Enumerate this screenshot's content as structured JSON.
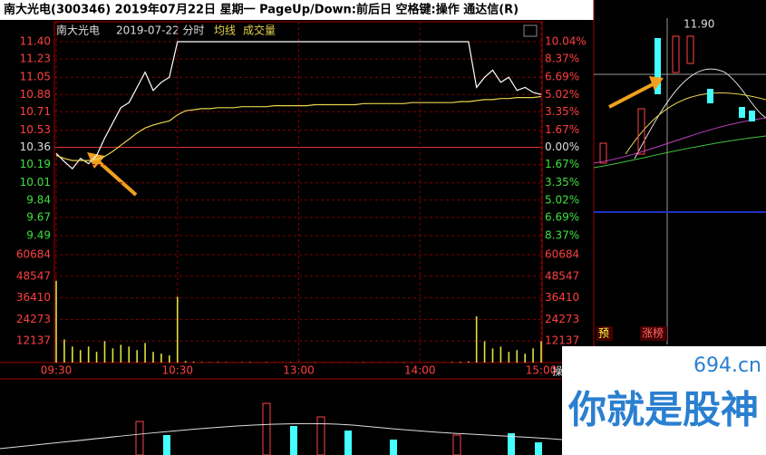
{
  "header": {
    "title": "南大光电(300346)  2019年07月22日 星期一  PageUp/Down:前后日 空格键:操作 通达信(R)"
  },
  "chart_data": {
    "type": "line",
    "subtitle": "2019-07-22 分时",
    "x": [
      0,
      4,
      8,
      12,
      16,
      20,
      24,
      28,
      32,
      36,
      40,
      44,
      48,
      52,
      56,
      60,
      64,
      68,
      72,
      76,
      80,
      84,
      88,
      92,
      96,
      100,
      104,
      108,
      112,
      116,
      120,
      124,
      128,
      132,
      136,
      140,
      144,
      148,
      152,
      156,
      160,
      164,
      168,
      172,
      176,
      180,
      184,
      188,
      192,
      196,
      200,
      204,
      208,
      212,
      216,
      220,
      224,
      228,
      232,
      236,
      240
    ],
    "xlim": [
      0,
      240
    ],
    "xticks": [
      {
        "value": 0,
        "label": "09:30"
      },
      {
        "value": 60,
        "label": "10:30"
      },
      {
        "value": 120,
        "label": "13:00"
      },
      {
        "value": 180,
        "label": "14:00"
      },
      {
        "value": 240,
        "label": "15:00"
      }
    ],
    "ylim": [
      9.49,
      11.4
    ],
    "yticks": [
      {
        "value": 11.4,
        "label": "11.40"
      },
      11.23,
      11.05,
      10.88,
      10.71,
      10.53,
      10.36,
      10.19,
      10.01,
      9.84,
      9.67,
      9.49
    ],
    "pct_labels": [
      "10.04%",
      "8.37%",
      "6.69%",
      "5.02%",
      "3.35%",
      "1.67%",
      "0.00%",
      "1.67%",
      "3.35%",
      "5.02%",
      "6.69%",
      "8.37%"
    ],
    "series": [
      {
        "name": "南大光电",
        "color": "#ffffff",
        "values": [
          10.3,
          10.22,
          10.15,
          10.25,
          10.2,
          10.28,
          10.45,
          10.6,
          10.75,
          10.8,
          10.95,
          11.1,
          10.92,
          11.0,
          11.05,
          11.4,
          11.4,
          11.4,
          11.4,
          11.4,
          11.4,
          11.4,
          11.4,
          11.4,
          11.4,
          11.4,
          11.4,
          11.4,
          11.4,
          11.4,
          11.4,
          11.4,
          11.4,
          11.4,
          11.4,
          11.4,
          11.4,
          11.4,
          11.4,
          11.4,
          11.4,
          11.4,
          11.4,
          11.4,
          11.4,
          11.4,
          11.4,
          11.4,
          11.4,
          11.4,
          11.4,
          11.4,
          10.95,
          11.05,
          11.12,
          11.0,
          11.05,
          10.92,
          10.95,
          10.9,
          10.88
        ]
      },
      {
        "name": "均线",
        "color": "#e8d44d",
        "values": [
          10.28,
          10.25,
          10.23,
          10.23,
          10.23,
          10.24,
          10.27,
          10.32,
          10.38,
          10.44,
          10.5,
          10.55,
          10.58,
          10.6,
          10.62,
          10.68,
          10.72,
          10.73,
          10.74,
          10.74,
          10.75,
          10.75,
          10.75,
          10.76,
          10.76,
          10.76,
          10.76,
          10.77,
          10.77,
          10.77,
          10.77,
          10.77,
          10.78,
          10.78,
          10.78,
          10.78,
          10.78,
          10.78,
          10.79,
          10.79,
          10.79,
          10.79,
          10.79,
          10.79,
          10.8,
          10.8,
          10.8,
          10.8,
          10.8,
          10.8,
          10.81,
          10.81,
          10.82,
          10.83,
          10.83,
          10.84,
          10.84,
          10.85,
          10.85,
          10.85,
          10.86
        ]
      }
    ],
    "volume": {
      "name": "成交量",
      "color": "#e0e040",
      "values": [
        46000,
        13000,
        9000,
        7000,
        9000,
        6000,
        12000,
        8000,
        10000,
        9000,
        7000,
        11000,
        6000,
        5000,
        4000,
        37000,
        800,
        500,
        300,
        200,
        300,
        200,
        100,
        200,
        300,
        100,
        200,
        100,
        100,
        200,
        100,
        100,
        200,
        100,
        100,
        100,
        100,
        100,
        200,
        100,
        100,
        100,
        100,
        200,
        100,
        100,
        100,
        100,
        100,
        300,
        400,
        600,
        26000,
        12000,
        8000,
        9000,
        6000,
        7000,
        5000,
        8000,
        12000
      ],
      "ylim": [
        0,
        60684
      ],
      "yticks": [
        60684,
        48547,
        36410,
        24273,
        12137
      ]
    },
    "side_price": "11.90",
    "side_tags": [
      "预",
      "涨榜"
    ],
    "bottom_label": "操"
  },
  "watermark": {
    "site": "694.cn",
    "slogan": "你就是股神"
  }
}
